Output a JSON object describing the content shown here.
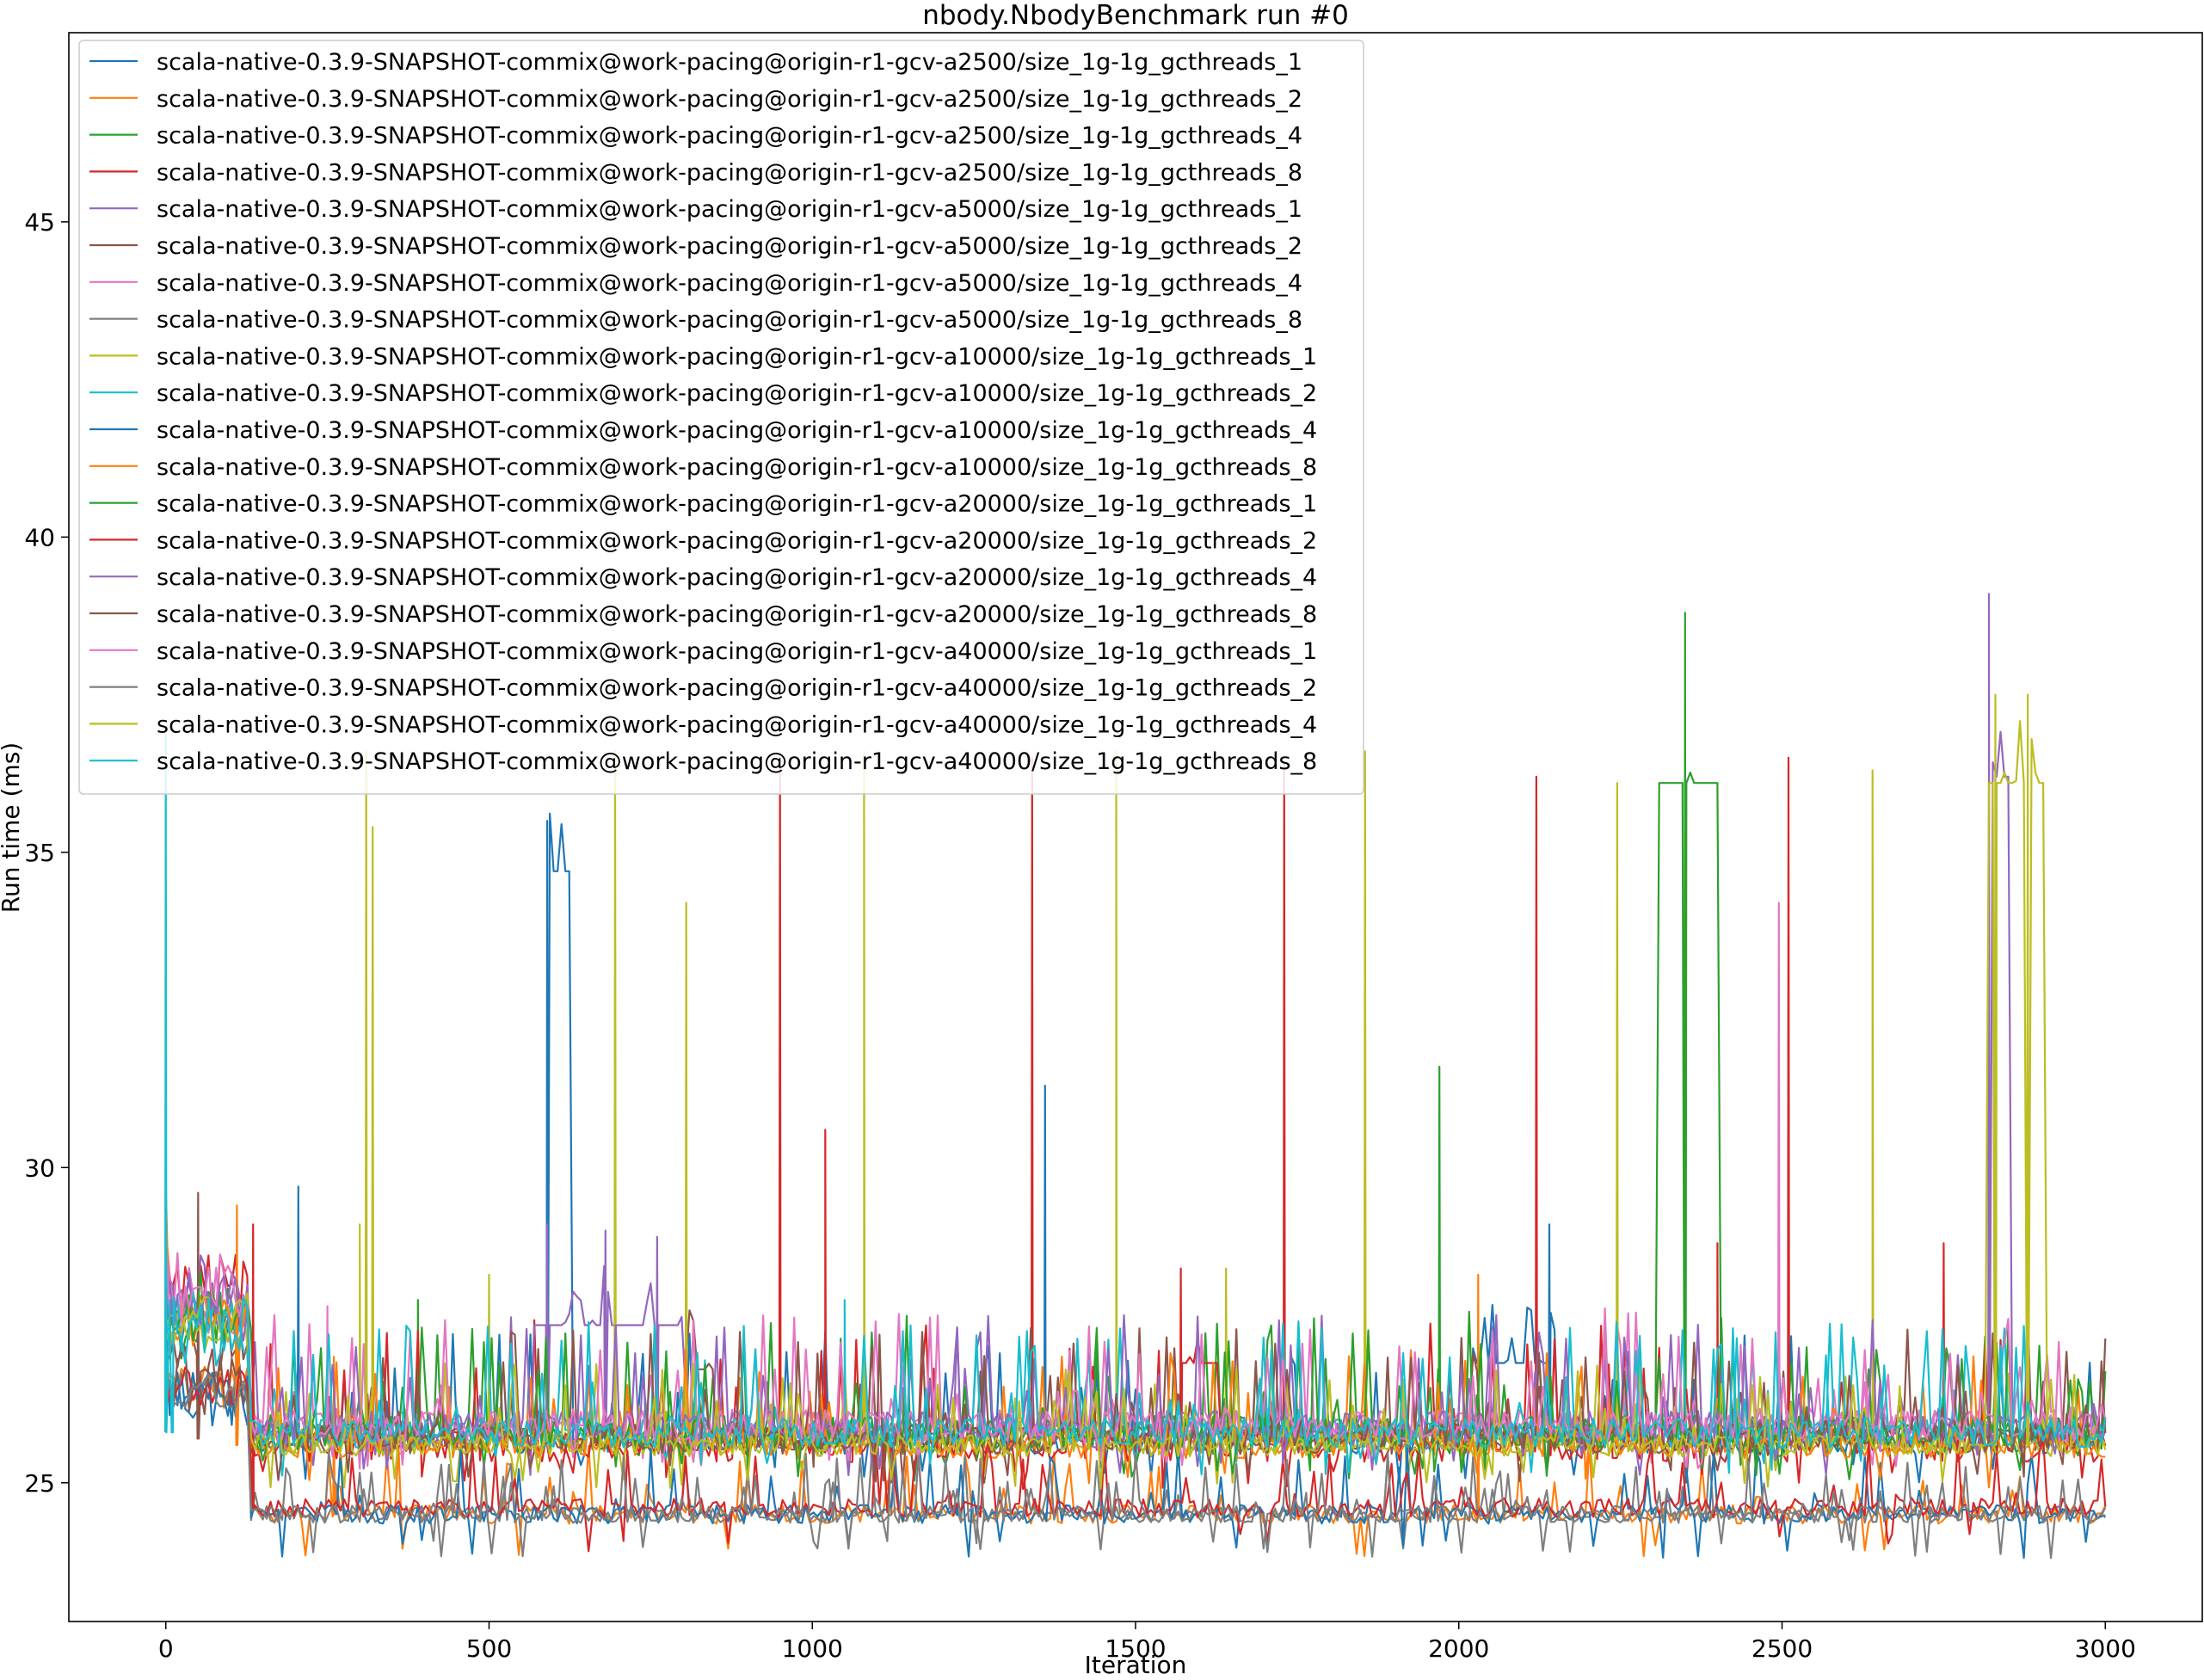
{
  "chart_data": {
    "type": "line",
    "title": "nbody.NbodyBenchmark run #0",
    "xlabel": "Iteration",
    "ylabel": "Run time (ms)",
    "xlim": [
      -150,
      3150
    ],
    "ylim": [
      22.8,
      48.0
    ],
    "xticks": [
      0,
      500,
      1000,
      1500,
      2000,
      2500,
      3000
    ],
    "yticks": [
      25,
      30,
      35,
      40,
      45
    ],
    "grid": false,
    "legend_position": "upper-left",
    "series": [
      {
        "name": "scala-native-0.3.9-SNAPSHOT-commix@work-pacing@origin-r1-gcv-a2500/size_1g-1g_gcthreads_1",
        "color": "#1f77b4",
        "initial": 27.6,
        "warm": 26.4,
        "base": 25.7,
        "jitter": 0.8,
        "plateaus": [
          {
            "x": [
              590,
              625
            ],
            "y": 34.7
          },
          {
            "x": [
              2020,
              2150
            ],
            "y": 26.9
          }
        ],
        "spikes": [
          [
            205,
            29.7
          ],
          [
            1360,
            31.3
          ],
          [
            2140,
            29.1
          ],
          [
            590,
            35.5
          ]
        ]
      },
      {
        "name": "scala-native-0.3.9-SNAPSHOT-commix@work-pacing@origin-r1-gcv-a2500/size_1g-1g_gcthreads_2",
        "color": "#ff7f0e",
        "initial": 26.8,
        "warm": 26.5,
        "base": 24.5,
        "jitter": 0.5,
        "plateaus": [],
        "spikes": [
          [
            260,
            27.0
          ],
          [
            2030,
            28.3
          ]
        ]
      },
      {
        "name": "scala-native-0.3.9-SNAPSHOT-commix@work-pacing@origin-r1-gcv-a2500/size_1g-1g_gcthreads_4",
        "color": "#2ca02c",
        "initial": 27.5,
        "warm": 27.5,
        "base": 25.7,
        "jitter": 0.9,
        "plateaus": [
          {
            "x": [
              2305,
              2400
            ],
            "y": 36.1
          }
        ],
        "spikes": [
          [
            2350,
            38.8
          ],
          [
            1970,
            31.6
          ],
          [
            390,
            27.9
          ]
        ]
      },
      {
        "name": "scala-native-0.3.9-SNAPSHOT-commix@work-pacing@origin-r1-gcv-a2500/size_1g-1g_gcthreads_8",
        "color": "#d62728",
        "initial": 28.3,
        "warm": 28.0,
        "base": 25.6,
        "jitter": 0.9,
        "plateaus": [
          {
            "x": [
              1570,
              1630
            ],
            "y": 26.9
          }
        ],
        "spikes": [
          [
            950,
            36.5
          ],
          [
            1340,
            36.5
          ],
          [
            1730,
            36.4
          ],
          [
            2120,
            36.2
          ],
          [
            2510,
            36.5
          ],
          [
            1020,
            30.6
          ],
          [
            2400,
            28.8
          ],
          [
            2750,
            28.8
          ],
          [
            1570,
            28.4
          ]
        ]
      },
      {
        "name": "scala-native-0.3.9-SNAPSHOT-commix@work-pacing@origin-r1-gcv-a5000/size_1g-1g_gcthreads_1",
        "color": "#9467bd",
        "initial": 28.8,
        "warm": 28.0,
        "base": 25.8,
        "jitter": 0.9,
        "plateaus": [
          {
            "x": [
              565,
              800
            ],
            "y": 27.5
          },
          {
            "x": [
              2820,
              2850
            ],
            "y": 36.2
          }
        ],
        "spikes": [
          [
            2820,
            39.1
          ],
          [
            590,
            29.1
          ],
          [
            680,
            29.0
          ],
          [
            760,
            28.9
          ]
        ]
      },
      {
        "name": "scala-native-0.3.9-SNAPSHOT-commix@work-pacing@origin-r1-gcv-a5000/size_1g-1g_gcthreads_2",
        "color": "#8c564b",
        "initial": 27.0,
        "warm": 27.2,
        "base": 25.7,
        "jitter": 0.8,
        "plateaus": [
          {
            "x": [
              800,
              850
            ],
            "y": 26.8
          }
        ],
        "spikes": [
          [
            50,
            29.6
          ]
        ]
      },
      {
        "name": "scala-native-0.3.9-SNAPSHOT-commix@work-pacing@origin-r1-gcv-a5000/size_1g-1g_gcthreads_4",
        "color": "#e377c2",
        "initial": 28.4,
        "warm": 27.8,
        "base": 25.9,
        "jitter": 0.9,
        "plateaus": [],
        "spikes": [
          [
            2495,
            34.2
          ],
          [
            250,
            27.8
          ]
        ]
      },
      {
        "name": "scala-native-0.3.9-SNAPSHOT-commix@work-pacing@origin-r1-gcv-a5000/size_1g-1g_gcthreads_8",
        "color": "#7f7f7f",
        "initial": 26.6,
        "warm": 26.5,
        "base": 24.5,
        "jitter": 0.45,
        "plateaus": [],
        "spikes": []
      },
      {
        "name": "scala-native-0.3.9-SNAPSHOT-commix@work-pacing@origin-r1-gcv-a10000/size_1g-1g_gcthreads_1",
        "color": "#bcbd22",
        "initial": 27.2,
        "warm": 27.5,
        "base": 25.6,
        "jitter": 0.6,
        "plateaus": [],
        "spikes": [
          [
            310,
            36.6
          ],
          [
            320,
            35.4
          ],
          [
            300,
            29.1
          ],
          [
            695,
            36.6
          ],
          [
            805,
            34.2
          ],
          [
            1080,
            36.6
          ],
          [
            1470,
            36.6
          ],
          [
            1855,
            36.6
          ],
          [
            2245,
            36.1
          ],
          [
            2640,
            36.3
          ],
          [
            1640,
            28.4
          ],
          [
            500,
            28.3
          ]
        ]
      },
      {
        "name": "scala-native-0.3.9-SNAPSHOT-commix@work-pacing@origin-r1-gcv-a10000/size_1g-1g_gcthreads_2",
        "color": "#17becf",
        "initial": 27.7,
        "warm": 27.6,
        "base": 25.8,
        "jitter": 0.8,
        "plateaus": [],
        "spikes": [
          [
            1050,
            27.9
          ]
        ]
      },
      {
        "name": "scala-native-0.3.9-SNAPSHOT-commix@work-pacing@origin-r1-gcv-a10000/size_1g-1g_gcthreads_4",
        "color": "#1f77b4",
        "initial": 26.5,
        "warm": 26.4,
        "base": 24.5,
        "jitter": 0.5,
        "plateaus": [],
        "spikes": []
      },
      {
        "name": "scala-native-0.3.9-SNAPSHOT-commix@work-pacing@origin-r1-gcv-a10000/size_1g-1g_gcthreads_8",
        "color": "#ff7f0e",
        "initial": 29.4,
        "warm": 27.6,
        "base": 25.6,
        "jitter": 0.7,
        "plateaus": [],
        "spikes": [
          [
            110,
            29.4
          ]
        ]
      },
      {
        "name": "scala-native-0.3.9-SNAPSHOT-commix@work-pacing@origin-r1-gcv-a20000/size_1g-1g_gcthreads_1",
        "color": "#2ca02c",
        "initial": 27.8,
        "warm": 27.7,
        "base": 25.8,
        "jitter": 0.9,
        "plateaus": [],
        "spikes": []
      },
      {
        "name": "scala-native-0.3.9-SNAPSHOT-commix@work-pacing@origin-r1-gcv-a20000/size_1g-1g_gcthreads_2",
        "color": "#d62728",
        "initial": 27.0,
        "warm": 26.5,
        "base": 24.6,
        "jitter": 0.5,
        "plateaus": [],
        "spikes": [
          [
            135,
            29.1
          ]
        ]
      },
      {
        "name": "scala-native-0.3.9-SNAPSHOT-commix@work-pacing@origin-r1-gcv-a20000/size_1g-1g_gcthreads_4",
        "color": "#9467bd",
        "initial": 27.9,
        "warm": 27.8,
        "base": 25.9,
        "jitter": 0.8,
        "plateaus": [],
        "spikes": []
      },
      {
        "name": "scala-native-0.3.9-SNAPSHOT-commix@work-pacing@origin-r1-gcv-a20000/size_1g-1g_gcthreads_8",
        "color": "#8c564b",
        "initial": 26.8,
        "warm": 26.6,
        "base": 25.7,
        "jitter": 0.8,
        "plateaus": [],
        "spikes": []
      },
      {
        "name": "scala-native-0.3.9-SNAPSHOT-commix@work-pacing@origin-r1-gcv-a40000/size_1g-1g_gcthreads_1",
        "color": "#e377c2",
        "initial": 28.5,
        "warm": 28.1,
        "base": 25.9,
        "jitter": 0.8,
        "plateaus": [],
        "spikes": []
      },
      {
        "name": "scala-native-0.3.9-SNAPSHOT-commix@work-pacing@origin-r1-gcv-a40000/size_1g-1g_gcthreads_2",
        "color": "#7f7f7f",
        "initial": 26.5,
        "warm": 26.5,
        "base": 24.5,
        "jitter": 0.45,
        "plateaus": [],
        "spikes": []
      },
      {
        "name": "scala-native-0.3.9-SNAPSHOT-commix@work-pacing@origin-r1-gcv-a40000/size_1g-1g_gcthreads_4",
        "color": "#bcbd22",
        "initial": 27.6,
        "warm": 27.6,
        "base": 25.6,
        "jitter": 0.6,
        "plateaus": [
          {
            "x": [
              2815,
              2905
            ],
            "y": 36.1
          }
        ],
        "spikes": [
          [
            2830,
            37.5
          ],
          [
            2880,
            37.5
          ]
        ]
      },
      {
        "name": "scala-native-0.3.9-SNAPSHOT-commix@work-pacing@origin-r1-gcv-a40000/size_1g-1g_gcthreads_8",
        "color": "#17becf",
        "initial": 36.5,
        "warm": 27.4,
        "base": 25.8,
        "jitter": 0.8,
        "plateaus": [],
        "spikes": [
          [
            0,
            36.5
          ],
          [
            10,
            26.0
          ]
        ]
      }
    ]
  }
}
